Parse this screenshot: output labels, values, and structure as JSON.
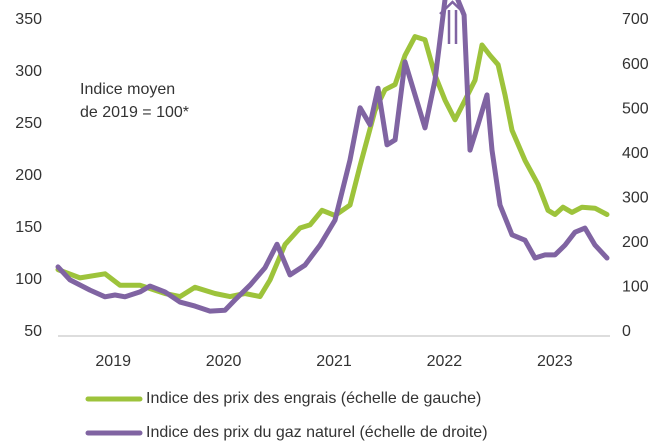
{
  "chart_data": {
    "type": "line",
    "annotations": [
      "Indice moyen",
      "de 2019 = 100*"
    ],
    "xlim": [
      2019,
      2024
    ],
    "xticks": [
      {
        "value": 2019.5,
        "label": "2019"
      },
      {
        "value": 2020.5,
        "label": "2020"
      },
      {
        "value": 2021.5,
        "label": "2021"
      },
      {
        "value": 2022.5,
        "label": "2022"
      },
      {
        "value": 2023.5,
        "label": "2023"
      }
    ],
    "ylim": [
      50,
      350
    ],
    "yticks": [
      50,
      100,
      150,
      200,
      250,
      300,
      350
    ],
    "y2lim": [
      0,
      700
    ],
    "y2ticks": [
      0,
      100,
      200,
      300,
      400,
      500,
      600,
      700
    ],
    "series": [
      {
        "name": "Indice des prix des engrais (échelle de gauche)",
        "color": "#9dc33b",
        "axis": "y",
        "x": [
          2019.0,
          2019.199,
          2019.426,
          2019.562,
          2019.743,
          2019.969,
          2020.105,
          2020.241,
          2020.422,
          2020.558,
          2020.694,
          2020.83,
          2020.92,
          2021.056,
          2021.192,
          2021.283,
          2021.391,
          2021.509,
          2021.645,
          2021.736,
          2021.871,
          2021.962,
          2022.053,
          2022.143,
          2022.234,
          2022.324,
          2022.415,
          2022.505,
          2022.596,
          2022.687,
          2022.777,
          2022.841,
          2022.913,
          2022.986,
          2023.049,
          2023.112,
          2023.23,
          2023.348,
          2023.438,
          2023.502,
          2023.574,
          2023.656,
          2023.746,
          2023.864,
          2023.973
        ],
        "values": [
          110,
          102,
          106,
          95,
          95,
          87,
          84,
          93,
          87,
          84,
          87,
          84,
          100,
          134,
          150,
          153,
          167,
          162,
          172,
          210,
          263,
          283,
          288,
          316,
          334,
          331,
          297,
          273,
          254,
          273,
          292,
          326,
          316,
          307,
          278,
          244,
          215,
          192,
          167,
          163,
          170,
          165,
          170,
          169,
          163
        ]
      },
      {
        "name": "Indice des prix du gaz naturel (échelle de droite)",
        "color": "#8064a2",
        "axis": "y2",
        "x": [
          2019.0,
          2019.109,
          2019.29,
          2019.426,
          2019.516,
          2019.607,
          2019.743,
          2019.833,
          2019.969,
          2020.105,
          2020.241,
          2020.377,
          2020.513,
          2020.603,
          2020.739,
          2020.875,
          2020.984,
          2021.101,
          2021.237,
          2021.373,
          2021.509,
          2021.645,
          2021.736,
          2021.826,
          2021.899,
          2021.98,
          2022.053,
          2022.143,
          2022.234,
          2022.324,
          2022.415,
          2022.533,
          2022.678,
          2022.732,
          2022.804,
          2022.886,
          2022.931,
          2023.004,
          2023.112,
          2023.23,
          2023.321,
          2023.411,
          2023.502,
          2023.592,
          2023.683,
          2023.774,
          2023.864,
          2023.973
        ],
        "values": [
          146,
          117,
          94,
          79,
          83,
          79,
          90,
          103,
          90,
          67,
          58,
          47,
          49,
          72,
          105,
          144,
          197,
          128,
          150,
          195,
          251,
          386,
          503,
          465,
          547,
          420,
          431,
          606,
          532,
          458,
          565,
          800,
          711,
          408,
          465,
          532,
          408,
          285,
          218,
          206,
          166,
          173,
          173,
          195,
          224,
          233,
          195,
          166
        ]
      }
    ],
    "legend": "bottom"
  }
}
